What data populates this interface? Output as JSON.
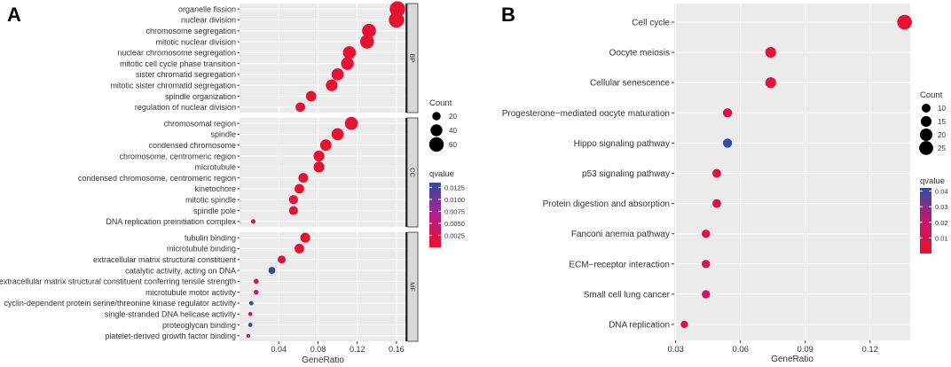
{
  "chart_data": [
    {
      "panel": "A",
      "type": "scatter",
      "subtype": "dot-plot (GO enrichment)",
      "xlabel": "GeneRatio",
      "ylabel": "",
      "xlim": [
        0.0,
        0.17
      ],
      "xticks": [
        "0.04",
        "0.08",
        "0.12",
        "0.16"
      ],
      "xtick_values": [
        0.04,
        0.08,
        0.12,
        0.16
      ],
      "grid": true,
      "facets": [
        {
          "name": "BP",
          "terms": [
            {
              "label": "organelle fission",
              "x": 0.161,
              "count": 68,
              "q": 0.0003
            },
            {
              "label": "nuclear division",
              "x": 0.16,
              "count": 67,
              "q": 0.0003
            },
            {
              "label": "chromosome segregation",
              "x": 0.132,
              "count": 55,
              "q": 0.0004
            },
            {
              "label": "mitotic nuclear division",
              "x": 0.13,
              "count": 54,
              "q": 0.0004
            },
            {
              "label": "nuclear chromosome segregation",
              "x": 0.112,
              "count": 47,
              "q": 0.0004
            },
            {
              "label": "mitotic cell cycle phase transition",
              "x": 0.11,
              "count": 46,
              "q": 0.0004
            },
            {
              "label": "sister chromatid segregation",
              "x": 0.1,
              "count": 42,
              "q": 0.0004
            },
            {
              "label": "mitotic sister chromatid segregation",
              "x": 0.094,
              "count": 39,
              "q": 0.0004
            },
            {
              "label": "spindle organization",
              "x": 0.073,
              "count": 31,
              "q": 0.0004
            },
            {
              "label": "regulation of nuclear division",
              "x": 0.062,
              "count": 26,
              "q": 0.0004
            }
          ]
        },
        {
          "name": "CC",
          "terms": [
            {
              "label": "chromosomal region",
              "x": 0.114,
              "count": 48,
              "q": 0.0003
            },
            {
              "label": "spindle",
              "x": 0.1,
              "count": 42,
              "q": 0.0003
            },
            {
              "label": "condensed chromosome",
              "x": 0.088,
              "count": 37,
              "q": 0.0003
            },
            {
              "label": "chromosome, centromeric region",
              "x": 0.081,
              "count": 34,
              "q": 0.0003
            },
            {
              "label": "microtubule",
              "x": 0.081,
              "count": 34,
              "q": 0.0003
            },
            {
              "label": "condensed chromosome, centromeric region",
              "x": 0.065,
              "count": 27,
              "q": 0.0003
            },
            {
              "label": "kinetochore",
              "x": 0.061,
              "count": 26,
              "q": 0.0003
            },
            {
              "label": "mitotic spindle",
              "x": 0.055,
              "count": 23,
              "q": 0.0003
            },
            {
              "label": "spindle pole",
              "x": 0.055,
              "count": 23,
              "q": 0.0003
            },
            {
              "label": "DNA replication preinitiation complex",
              "x": 0.014,
              "count": 6,
              "q": 0.0004
            }
          ]
        },
        {
          "name": "MF",
          "terms": [
            {
              "label": "tubulin binding",
              "x": 0.067,
              "count": 28,
              "q": 0.0003
            },
            {
              "label": "microtubule binding",
              "x": 0.061,
              "count": 26,
              "q": 0.0003
            },
            {
              "label": "extracellular matrix structural constituent",
              "x": 0.043,
              "count": 18,
              "q": 0.0006
            },
            {
              "label": "catalytic activity, acting on DNA",
              "x": 0.033,
              "count": 14,
              "q": 0.013
            },
            {
              "label": "extracellular matrix structural constituent conferring tensile strength",
              "x": 0.017,
              "count": 7,
              "q": 0.0015
            },
            {
              "label": "microtubule motor activity",
              "x": 0.017,
              "count": 7,
              "q": 0.005
            },
            {
              "label": "cyclin-dependent protein serine/threonine kinase regulator activity",
              "x": 0.012,
              "count": 5,
              "q": 0.013
            },
            {
              "label": "single-stranded DNA helicase activity",
              "x": 0.011,
              "count": 5,
              "q": 0.0008
            },
            {
              "label": "proteoglycan binding",
              "x": 0.011,
              "count": 5,
              "q": 0.013
            },
            {
              "label": "platelet-derived growth factor binding",
              "x": 0.009,
              "count": 4,
              "q": 0.006
            }
          ]
        }
      ],
      "legend_size": {
        "title": "Count",
        "values": [
          20,
          40,
          60
        ]
      },
      "legend_color": {
        "title": "qvalue",
        "min": 0.0,
        "max": 0.0135,
        "ticks": [
          0.0125,
          0.01,
          0.0075,
          0.005,
          0.0025
        ],
        "tick_labels": [
          "0.0125",
          "0.0100",
          "0.0075",
          "0.0050",
          "0.0025"
        ],
        "low_color": "#e8112d",
        "mid_color": "#b51d8e",
        "high_color": "#2d4ea2"
      }
    },
    {
      "panel": "B",
      "type": "scatter",
      "subtype": "dot-plot (KEGG enrichment)",
      "xlabel": "GeneRatio",
      "ylabel": "",
      "xlim": [
        0.0293,
        0.1386
      ],
      "xticks": [
        "0.03",
        "0.06",
        "0.09",
        "0.12"
      ],
      "xtick_values": [
        0.03,
        0.06,
        0.09,
        0.12
      ],
      "grid": true,
      "terms": [
        {
          "label": "Cell cycle",
          "x": 0.136,
          "count": 28,
          "q": 0.0005
        },
        {
          "label": "Oocyte meiosis",
          "x": 0.074,
          "count": 15,
          "q": 0.004
        },
        {
          "label": "Cellular senescence",
          "x": 0.074,
          "count": 15,
          "q": 0.004
        },
        {
          "label": "Progesterone−mediated oocyte maturation",
          "x": 0.054,
          "count": 11,
          "q": 0.009
        },
        {
          "label": "Hippo signaling pathway",
          "x": 0.054,
          "count": 11,
          "q": 0.041
        },
        {
          "label": "p53 signaling pathway",
          "x": 0.049,
          "count": 10,
          "q": 0.006
        },
        {
          "label": "Protein digestion and absorption",
          "x": 0.049,
          "count": 10,
          "q": 0.011
        },
        {
          "label": "Fanconi anemia pathway",
          "x": 0.044,
          "count": 9,
          "q": 0.006
        },
        {
          "label": "ECM−receptor interaction",
          "x": 0.044,
          "count": 9,
          "q": 0.011
        },
        {
          "label": "Small cell lung cancer",
          "x": 0.044,
          "count": 9,
          "q": 0.016
        },
        {
          "label": "DNA replication",
          "x": 0.034,
          "count": 7,
          "q": 0.008
        }
      ],
      "legend_size": {
        "title": "Count",
        "values": [
          10,
          15,
          20,
          25
        ]
      },
      "legend_color": {
        "title": "qvalue",
        "min": 0.0,
        "max": 0.042,
        "ticks": [
          0.04,
          0.03,
          0.02,
          0.01
        ],
        "tick_labels": [
          "0.04",
          "0.03",
          "0.02",
          "0.01"
        ],
        "low_color": "#e8112d",
        "mid_color": "#c8146f",
        "high_color": "#2d4ea2"
      }
    }
  ],
  "colors": {
    "panel_bg": "#ebebeb",
    "grid": "#ffffff",
    "strip_bg": "#d9d9d9",
    "strip_border": "#333333",
    "text": "#333333"
  }
}
